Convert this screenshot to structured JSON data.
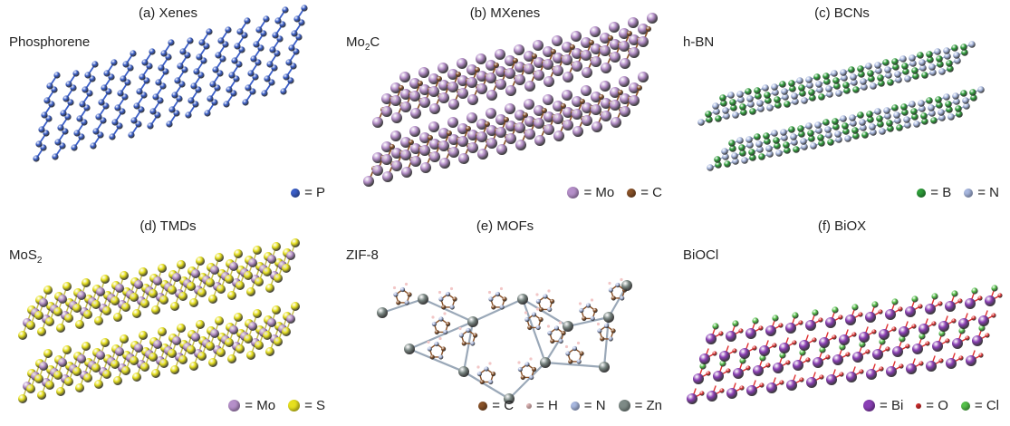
{
  "panels": [
    {
      "title": "(a) Xenes",
      "material": "Phosphorene",
      "material_sub": "",
      "legend": [
        {
          "label": "= P",
          "color": "#3a5ec8"
        }
      ]
    },
    {
      "title": "(b) MXenes",
      "material": "Mo",
      "material_sub": "2",
      "material_suffix": "C",
      "legend": [
        {
          "label": "= Mo",
          "color": "#b58fc9"
        },
        {
          "label": "= C",
          "color": "#8a5228"
        }
      ]
    },
    {
      "title": "(c) BCNs",
      "material": "h-BN",
      "material_sub": "",
      "legend": [
        {
          "label": "= B",
          "color": "#2e9e3a"
        },
        {
          "label": "= N",
          "color": "#a8b8e0"
        }
      ]
    },
    {
      "title": "(d) TMDs",
      "material": "MoS",
      "material_sub": "2",
      "material_suffix": "",
      "legend": [
        {
          "label": "= Mo",
          "color": "#b58fc9"
        },
        {
          "label": "= S",
          "color": "#e6e01e"
        }
      ]
    },
    {
      "title": "(e) MOFs",
      "material": "ZIF-8",
      "material_sub": "",
      "legend": [
        {
          "label": "= C",
          "color": "#8a5228"
        },
        {
          "label": "= H",
          "color": "#f2c6c6"
        },
        {
          "label": "= N",
          "color": "#a8b8e0"
        },
        {
          "label": "= Zn",
          "color": "#7d8a86"
        }
      ]
    },
    {
      "title": "(f) BiOX",
      "material": "BiOCl",
      "material_sub": "",
      "legend": [
        {
          "label": "= Bi",
          "color": "#8a3fb5"
        },
        {
          "label": "= O",
          "color": "#e03030"
        },
        {
          "label": "= Cl",
          "color": "#55c24a"
        }
      ]
    }
  ]
}
